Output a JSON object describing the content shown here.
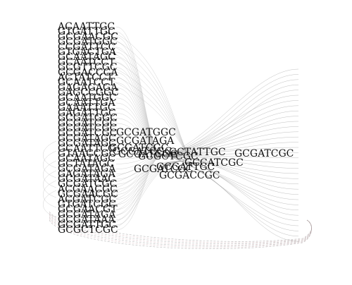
{
  "diagram": {
    "left_column": [
      "ACAATTGC",
      "GTGATTGC",
      "GCGAACGC",
      "GCGATGGC",
      "CCGATTCC",
      "GTGACTGA",
      "GCAATAGC",
      "GCAATCCT",
      "GCGTTCGC",
      "GCGACCCA",
      "ACTATCCT",
      "GCAATCCT",
      "GAGAGAGA",
      "GAGCCGGC",
      "GCAATGGC",
      "GCAATTGA",
      "GAAATTGC",
      "GAGATTGC",
      "GCGATGGC",
      "GCGATCGC",
      "GCGATCGC",
      "GCGATCGC",
      "GCGATAGC",
      "GCGATAGC",
      "GCAATTCC",
      "GTAACCGC",
      "GCAATAGC",
      "GCTATAGC",
      "GCGATAGA",
      "GAGATAGA",
      "GCGATAAC",
      "GCGATCGC",
      "ACGAACGC",
      "GCGAACGC",
      "ACGATCGC",
      "GTGATCGC",
      "GCGAACGT",
      "GCGATAGA",
      "GCGATAAA",
      "GCGATTGC",
      "GCGCTCGC"
    ],
    "center_labels": [
      "GCGATGGC",
      "GCGATAGA",
      "GCGATCGC",
      "GCGATCGC",
      "GCGATCGC",
      "GCTATTGC",
      "GCGCTCGC",
      "GCCATCGC",
      "GCGATCGC",
      "GCGATTGC",
      "GCGACCGC"
    ],
    "right_label": "GCGATCGC",
    "colors": {
      "edge": "#8a8a8a",
      "edge_pink": "#c9a3a8",
      "text": "#111111"
    }
  }
}
